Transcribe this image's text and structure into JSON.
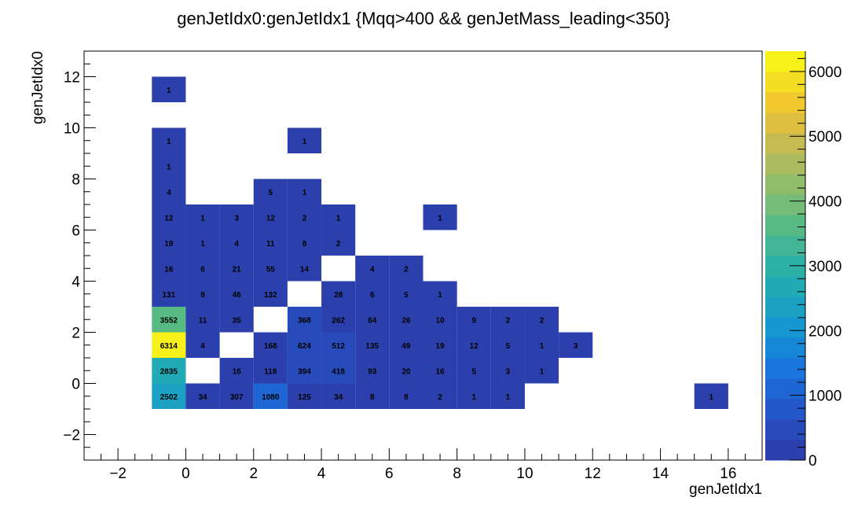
{
  "chart_data": {
    "type": "heatmap",
    "title": "genJetIdx0:genJetIdx1 {Mqq>400 && genJetMass_leading<350}",
    "xlabel": "genJetIdx1",
    "ylabel": "genJetIdx0",
    "xlim": [
      -3,
      17
    ],
    "ylim": [
      -3,
      13
    ],
    "x_ticks": [
      -2,
      0,
      2,
      4,
      6,
      8,
      10,
      12,
      14,
      16
    ],
    "y_ticks": [
      -2,
      0,
      2,
      4,
      6,
      8,
      10,
      12
    ],
    "zlim": [
      0,
      6314
    ],
    "z_ticks": [
      0,
      1000,
      2000,
      3000,
      4000,
      5000,
      6000
    ],
    "bin_width": 1,
    "grid": false,
    "palette_position": "right",
    "cells": [
      {
        "x": -1,
        "y": -1,
        "value": 2502
      },
      {
        "x": 0,
        "y": -1,
        "value": 34
      },
      {
        "x": 1,
        "y": -1,
        "value": 307
      },
      {
        "x": 2,
        "y": -1,
        "value": 1080
      },
      {
        "x": 3,
        "y": -1,
        "value": 125
      },
      {
        "x": 4,
        "y": -1,
        "value": 34
      },
      {
        "x": 5,
        "y": -1,
        "value": 8
      },
      {
        "x": 6,
        "y": -1,
        "value": 8
      },
      {
        "x": 7,
        "y": -1,
        "value": 2
      },
      {
        "x": 8,
        "y": -1,
        "value": 1
      },
      {
        "x": 9,
        "y": -1,
        "value": 1
      },
      {
        "x": 15,
        "y": -1,
        "value": 1
      },
      {
        "x": -1,
        "y": 0,
        "value": 2835
      },
      {
        "x": 1,
        "y": 0,
        "value": 16
      },
      {
        "x": 2,
        "y": 0,
        "value": 118
      },
      {
        "x": 3,
        "y": 0,
        "value": 394
      },
      {
        "x": 4,
        "y": 0,
        "value": 418
      },
      {
        "x": 5,
        "y": 0,
        "value": 93
      },
      {
        "x": 6,
        "y": 0,
        "value": 20
      },
      {
        "x": 7,
        "y": 0,
        "value": 16
      },
      {
        "x": 8,
        "y": 0,
        "value": 5
      },
      {
        "x": 9,
        "y": 0,
        "value": 3
      },
      {
        "x": 10,
        "y": 0,
        "value": 1
      },
      {
        "x": -1,
        "y": 1,
        "value": 6314
      },
      {
        "x": 0,
        "y": 1,
        "value": 4
      },
      {
        "x": 2,
        "y": 1,
        "value": 168
      },
      {
        "x": 3,
        "y": 1,
        "value": 624
      },
      {
        "x": 4,
        "y": 1,
        "value": 512
      },
      {
        "x": 5,
        "y": 1,
        "value": 135
      },
      {
        "x": 6,
        "y": 1,
        "value": 49
      },
      {
        "x": 7,
        "y": 1,
        "value": 19
      },
      {
        "x": 8,
        "y": 1,
        "value": 12
      },
      {
        "x": 9,
        "y": 1,
        "value": 5
      },
      {
        "x": 10,
        "y": 1,
        "value": 1
      },
      {
        "x": 11,
        "y": 1,
        "value": 3
      },
      {
        "x": -1,
        "y": 2,
        "value": 3552
      },
      {
        "x": 0,
        "y": 2,
        "value": 11
      },
      {
        "x": 1,
        "y": 2,
        "value": 35
      },
      {
        "x": 3,
        "y": 2,
        "value": 368
      },
      {
        "x": 4,
        "y": 2,
        "value": 262
      },
      {
        "x": 5,
        "y": 2,
        "value": 64
      },
      {
        "x": 6,
        "y": 2,
        "value": 26
      },
      {
        "x": 7,
        "y": 2,
        "value": 10
      },
      {
        "x": 8,
        "y": 2,
        "value": 9
      },
      {
        "x": 9,
        "y": 2,
        "value": 2
      },
      {
        "x": 10,
        "y": 2,
        "value": 2
      },
      {
        "x": -1,
        "y": 3,
        "value": 131
      },
      {
        "x": 0,
        "y": 3,
        "value": 8
      },
      {
        "x": 1,
        "y": 3,
        "value": 46
      },
      {
        "x": 2,
        "y": 3,
        "value": 132
      },
      {
        "x": 4,
        "y": 3,
        "value": 28
      },
      {
        "x": 5,
        "y": 3,
        "value": 6
      },
      {
        "x": 6,
        "y": 3,
        "value": 5
      },
      {
        "x": 7,
        "y": 3,
        "value": 1
      },
      {
        "x": -1,
        "y": 4,
        "value": 16
      },
      {
        "x": 0,
        "y": 4,
        "value": 6
      },
      {
        "x": 1,
        "y": 4,
        "value": 21
      },
      {
        "x": 2,
        "y": 4,
        "value": 55
      },
      {
        "x": 3,
        "y": 4,
        "value": 14
      },
      {
        "x": 5,
        "y": 4,
        "value": 4
      },
      {
        "x": 6,
        "y": 4,
        "value": 2
      },
      {
        "x": -1,
        "y": 5,
        "value": 19
      },
      {
        "x": 0,
        "y": 5,
        "value": 1
      },
      {
        "x": 1,
        "y": 5,
        "value": 4
      },
      {
        "x": 2,
        "y": 5,
        "value": 11
      },
      {
        "x": 3,
        "y": 5,
        "value": 8
      },
      {
        "x": 4,
        "y": 5,
        "value": 2
      },
      {
        "x": -1,
        "y": 6,
        "value": 12
      },
      {
        "x": 0,
        "y": 6,
        "value": 1
      },
      {
        "x": 1,
        "y": 6,
        "value": 3
      },
      {
        "x": 2,
        "y": 6,
        "value": 12
      },
      {
        "x": 3,
        "y": 6,
        "value": 2
      },
      {
        "x": 4,
        "y": 6,
        "value": 1
      },
      {
        "x": 7,
        "y": 6,
        "value": 1
      },
      {
        "x": -1,
        "y": 7,
        "value": 4
      },
      {
        "x": 2,
        "y": 7,
        "value": 5
      },
      {
        "x": 3,
        "y": 7,
        "value": 1
      },
      {
        "x": -1,
        "y": 8,
        "value": 1
      },
      {
        "x": -1,
        "y": 9,
        "value": 1
      },
      {
        "x": 3,
        "y": 9,
        "value": 1
      },
      {
        "x": -1,
        "y": 11,
        "value": 1
      }
    ]
  }
}
